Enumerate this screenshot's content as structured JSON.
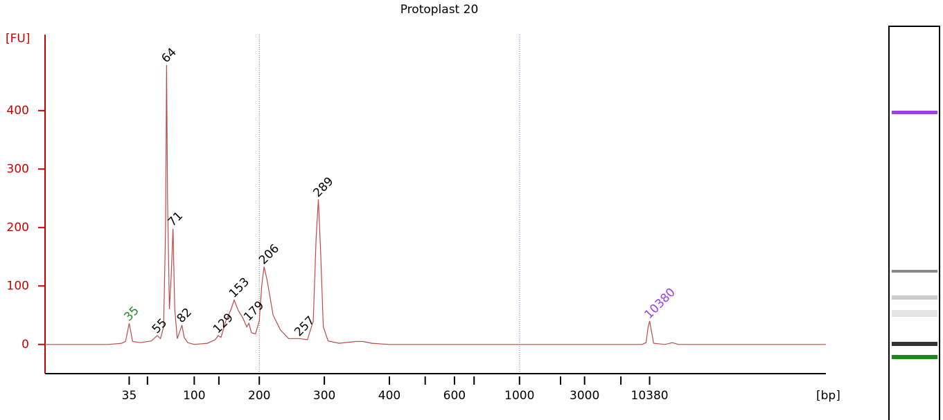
{
  "chart_data": {
    "type": "line",
    "title": "Protoplast 20",
    "y_label": "[FU]",
    "x_label": "[bp]",
    "x_scale": "ladder",
    "xlim": [
      9,
      300000
    ],
    "xticks": [
      35,
      100,
      200,
      300,
      400,
      600,
      1000,
      3000,
      10380
    ],
    "minor_xticks": [
      47,
      130,
      500,
      700,
      2000,
      6000
    ],
    "ylim": [
      -50,
      530
    ],
    "yticks": [
      0,
      100,
      200,
      300,
      400
    ],
    "axis_color": "#cc0000",
    "reference_lines": [
      {
        "x": 200,
        "color": "#777777"
      },
      {
        "x": 1000,
        "color": "#8080e0"
      }
    ],
    "x": [
      9,
      25,
      31,
      33,
      35,
      37,
      42,
      50,
      55,
      58,
      61,
      63,
      64,
      65,
      67,
      69,
      71,
      73,
      76,
      80,
      82,
      85,
      90,
      100,
      115,
      125,
      129,
      133,
      140,
      148,
      153,
      160,
      168,
      175,
      179,
      184,
      192,
      200,
      203,
      206,
      210,
      218,
      228,
      240,
      257,
      270,
      280,
      285,
      289,
      293,
      298,
      305,
      320,
      345,
      356,
      370,
      400,
      1000,
      9000,
      9700,
      10100,
      10380,
      10700,
      11200,
      14000,
      16000,
      18000,
      300000
    ],
    "series": [
      {
        "color": "#c04848",
        "values": [
          0,
          0,
          2,
          5,
          36,
          5,
          3,
          6,
          15,
          10,
          30,
          200,
          478,
          250,
          60,
          120,
          198,
          60,
          10,
          25,
          33,
          12,
          3,
          0,
          2,
          8,
          15,
          12,
          40,
          60,
          76,
          58,
          45,
          30,
          36,
          20,
          18,
          40,
          100,
          133,
          110,
          50,
          25,
          10,
          10,
          8,
          40,
          180,
          248,
          160,
          30,
          6,
          2,
          5,
          5,
          2,
          0,
          0,
          0,
          3,
          30,
          40,
          25,
          2,
          0,
          3,
          0,
          0
        ]
      }
    ],
    "peaks": [
      {
        "bp": 35,
        "fu": 36,
        "color": "#228b22"
      },
      {
        "bp": 55,
        "fu": 15,
        "color": "#000000"
      },
      {
        "bp": 64,
        "fu": 478,
        "color": "#000000"
      },
      {
        "bp": 71,
        "fu": 198,
        "color": "#000000"
      },
      {
        "bp": 82,
        "fu": 33,
        "color": "#000000"
      },
      {
        "bp": 129,
        "fu": 15,
        "color": "#000000"
      },
      {
        "bp": 153,
        "fu": 76,
        "color": "#000000"
      },
      {
        "bp": 179,
        "fu": 36,
        "color": "#000000"
      },
      {
        "bp": 206,
        "fu": 133,
        "color": "#000000"
      },
      {
        "bp": 257,
        "fu": 10,
        "color": "#000000"
      },
      {
        "bp": 289,
        "fu": 248,
        "color": "#000000"
      },
      {
        "bp": 10380,
        "fu": 40,
        "color": "#9b3fe0"
      }
    ]
  }
}
